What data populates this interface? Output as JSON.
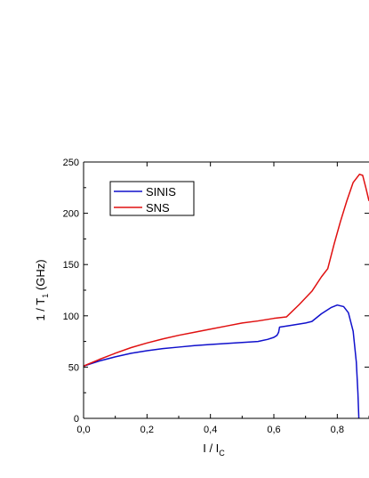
{
  "chart_data": {
    "type": "line",
    "xlabel": {
      "main": "I / I",
      "sub": "C"
    },
    "ylabel": {
      "main": "1 / T",
      "sub": "1",
      "unit": " (GHz)"
    },
    "xlim": [
      0,
      0.9
    ],
    "ylim": [
      0,
      250
    ],
    "x_ticks": [
      0.0,
      0.2,
      0.4,
      0.6,
      0.8
    ],
    "x_tick_labels": [
      "0,0",
      "0,2",
      "0,4",
      "0,6",
      "0,8"
    ],
    "y_ticks": [
      0,
      50,
      100,
      150,
      200,
      250
    ],
    "y_tick_labels": [
      "0",
      "50",
      "100",
      "150",
      "200",
      "250"
    ],
    "legend_position": "top-left",
    "grid": false,
    "series": [
      {
        "name": "SINIS",
        "color": "#1010cc",
        "points": [
          [
            0.0,
            51
          ],
          [
            0.05,
            56
          ],
          [
            0.1,
            60
          ],
          [
            0.15,
            63.5
          ],
          [
            0.2,
            66
          ],
          [
            0.25,
            68
          ],
          [
            0.3,
            69.5
          ],
          [
            0.35,
            71
          ],
          [
            0.4,
            72
          ],
          [
            0.45,
            73
          ],
          [
            0.5,
            74
          ],
          [
            0.55,
            75
          ],
          [
            0.58,
            77
          ],
          [
            0.6,
            79
          ],
          [
            0.61,
            81
          ],
          [
            0.615,
            84
          ],
          [
            0.618,
            89
          ],
          [
            0.65,
            90.5
          ],
          [
            0.7,
            93
          ],
          [
            0.72,
            94.5
          ],
          [
            0.75,
            102
          ],
          [
            0.78,
            108
          ],
          [
            0.8,
            110.5
          ],
          [
            0.82,
            109
          ],
          [
            0.835,
            103
          ],
          [
            0.85,
            85
          ],
          [
            0.86,
            55
          ],
          [
            0.865,
            25
          ],
          [
            0.868,
            0
          ]
        ]
      },
      {
        "name": "SNS",
        "color": "#e01010",
        "points": [
          [
            0.0,
            51
          ],
          [
            0.05,
            57.5
          ],
          [
            0.1,
            63.5
          ],
          [
            0.15,
            69
          ],
          [
            0.2,
            73.5
          ],
          [
            0.25,
            77.5
          ],
          [
            0.3,
            81
          ],
          [
            0.35,
            84
          ],
          [
            0.4,
            87
          ],
          [
            0.45,
            90
          ],
          [
            0.5,
            93
          ],
          [
            0.55,
            95
          ],
          [
            0.6,
            97.5
          ],
          [
            0.64,
            99
          ],
          [
            0.68,
            111
          ],
          [
            0.72,
            124
          ],
          [
            0.75,
            138
          ],
          [
            0.77,
            146
          ],
          [
            0.79,
            170
          ],
          [
            0.81,
            192
          ],
          [
            0.83,
            212
          ],
          [
            0.85,
            230
          ],
          [
            0.87,
            238
          ],
          [
            0.88,
            237
          ],
          [
            0.89,
            225
          ],
          [
            0.9,
            212
          ]
        ]
      }
    ]
  }
}
